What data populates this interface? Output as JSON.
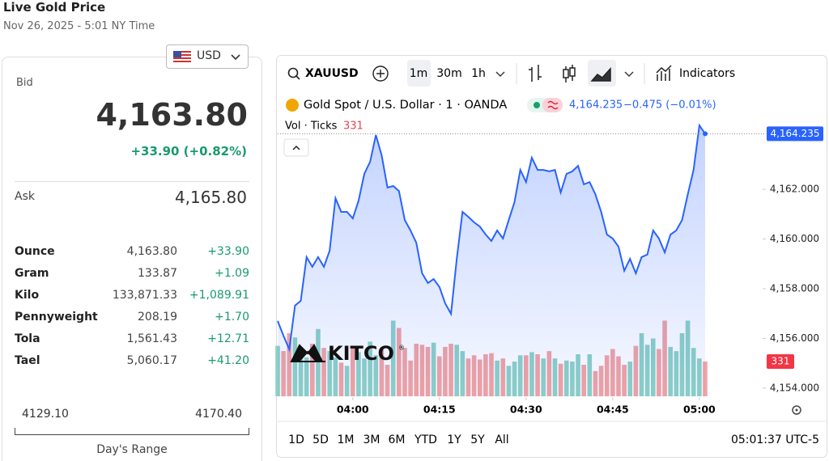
{
  "header": {
    "title": "Live Gold Price",
    "timestamp": "Nov 26, 2025 - 5:01 NY Time"
  },
  "currency": "USD",
  "quote": {
    "bid_label": "Bid",
    "bid": "4,163.80",
    "change": "+33.90 (+0.82%)",
    "ask_label": "Ask",
    "ask": "4,165.80"
  },
  "units": {
    "rows": [
      [
        "Ounce",
        "4,163.80",
        "+33.90"
      ],
      [
        "Gram",
        "133.87",
        "+1.09"
      ],
      [
        "Kilo",
        "133,871.33",
        "+1,089.91"
      ],
      [
        "Pennyweight",
        "208.19",
        "+1.70"
      ],
      [
        "Tola",
        "1,561.43",
        "+12.71"
      ],
      [
        "Tael",
        "5,060.17",
        "+41.20"
      ]
    ]
  },
  "range": {
    "low": "4129.10",
    "high": "4170.40",
    "label": "Day's Range"
  },
  "toolbar": {
    "symbol": "XAUUSD",
    "intervals": [
      "1m",
      "30m",
      "1h"
    ],
    "indicators": "Indicators"
  },
  "periods": [
    "1D",
    "5D",
    "1M",
    "3M",
    "6M",
    "YTD",
    "1Y",
    "5Y",
    "All"
  ],
  "clock": "05:01:37 UTC-5",
  "logo": "KITCO",
  "logo_mark": "®",
  "chart_data": {
    "type": "area",
    "x": [
      "03:47",
      "03:48",
      "03:49",
      "03:50",
      "03:51",
      "03:52",
      "03:53",
      "03:54",
      "03:55",
      "03:56",
      "03:57",
      "03:58",
      "03:59",
      "04:00",
      "04:01",
      "04:02",
      "04:03",
      "04:04",
      "04:05",
      "04:06",
      "04:07",
      "04:08",
      "04:09",
      "04:10",
      "04:11",
      "04:12",
      "04:13",
      "04:14",
      "04:15",
      "04:16",
      "04:17",
      "04:18",
      "04:19",
      "04:20",
      "04:21",
      "04:22",
      "04:23",
      "04:24",
      "04:25",
      "04:26",
      "04:27",
      "04:28",
      "04:29",
      "04:30",
      "04:31",
      "04:32",
      "04:33",
      "04:34",
      "04:35",
      "04:36",
      "04:37",
      "04:38",
      "04:39",
      "04:40",
      "04:41",
      "04:42",
      "04:43",
      "04:44",
      "04:45",
      "04:46",
      "04:47",
      "04:48",
      "04:49",
      "04:50",
      "04:51",
      "04:52",
      "04:53",
      "04:54",
      "04:55",
      "04:56",
      "04:57",
      "04:58",
      "04:59",
      "05:00",
      "05:01"
    ],
    "series": [
      {
        "name": "Gold Spot / U.S. Dollar · 1 · OANDA",
        "color": "#2962ff",
        "values": [
          4156.7,
          4156.11,
          4155.56,
          4157.32,
          4157.51,
          4159.27,
          4158.88,
          4159.27,
          4158.88,
          4159.53,
          4161.64,
          4161.09,
          4161.09,
          4160.83,
          4161.54,
          4162.62,
          4163.11,
          4164.18,
          4163.37,
          4162.07,
          4162.13,
          4161.93,
          4160.76,
          4160.34,
          4159.85,
          4158.62,
          4158.23,
          4158.39,
          4158.07,
          4157.41,
          4156.99,
          4159.2,
          4161.09,
          4160.89,
          4160.67,
          4160.5,
          4160.18,
          4159.92,
          4160.34,
          4160.02,
          4160.76,
          4161.48,
          4162.78,
          4162.29,
          4163.27,
          4162.78,
          4162.78,
          4162.72,
          4162.78,
          4161.87,
          4162.62,
          4162.72,
          4162.94,
          4162.2,
          4162.29,
          4161.8,
          4161.09,
          4160.18,
          4160.02,
          4159.69,
          4158.72,
          4159.2,
          4158.62,
          4159.27,
          4159.37,
          4160.34,
          4160.02,
          4159.46,
          4160.18,
          4160.34,
          4160.76,
          4161.8,
          4162.78,
          4164.57,
          4164.235
        ],
        "last_label": "4,164.235",
        "change": "−0.475 (−0.01%)"
      },
      {
        "name": "Vol · Ticks",
        "axis": "y2",
        "up_color": "#8ed1c6",
        "down_color": "#f3a3a3",
        "values": [
          480,
          430,
          600,
          560,
          420,
          370,
          500,
          640,
          460,
          430,
          370,
          320,
          290,
          470,
          420,
          360,
          520,
          390,
          440,
          300,
          720,
          650,
          460,
          340,
          500,
          490,
          470,
          510,
          380,
          470,
          500,
          490,
          430,
          360,
          390,
          350,
          400,
          410,
          340,
          360,
          290,
          330,
          390,
          390,
          420,
          400,
          360,
          430,
          360,
          310,
          340,
          330,
          400,
          300,
          400,
          240,
          290,
          390,
          450,
          380,
          300,
          330,
          480,
          600,
          490,
          550,
          450,
          720,
          470,
          430,
          600,
          720,
          460,
          360,
          331
        ]
      }
    ],
    "ylim": [
      4153.67,
      4165.06
    ],
    "yticks": [
      {
        "value": 4154,
        "label": "4,154.000"
      },
      {
        "value": 4156,
        "label": "4,156.000"
      },
      {
        "value": 4158,
        "label": "4,158.000"
      },
      {
        "value": 4160,
        "label": "4,160.000"
      },
      {
        "value": 4162,
        "label": "4,162.000"
      }
    ],
    "y2lim": [
      0,
      1000
    ],
    "xticks": [
      "04:00",
      "04:15",
      "04:30",
      "04:45",
      "05:00"
    ]
  }
}
